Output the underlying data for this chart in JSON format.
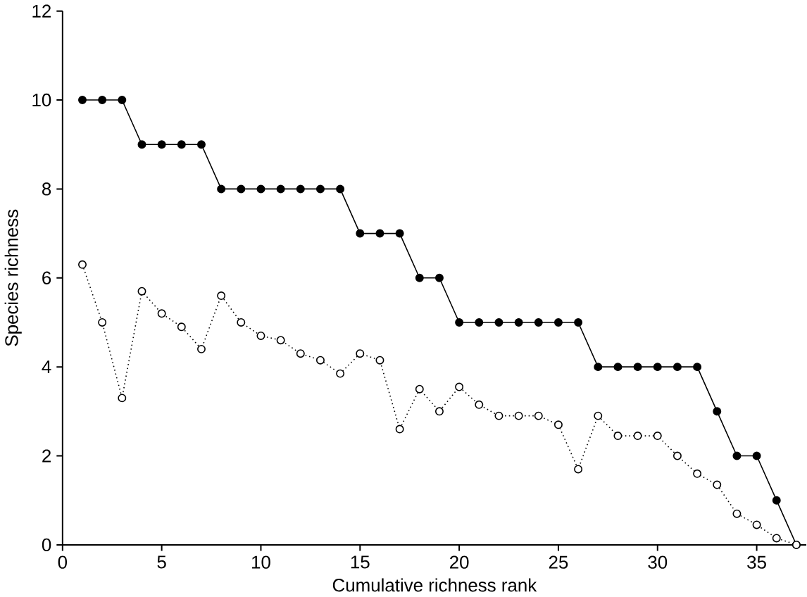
{
  "chart_data": {
    "type": "line",
    "xlabel": "Cumulative richness rank",
    "ylabel": "Species richness",
    "x": [
      1,
      2,
      3,
      4,
      5,
      6,
      7,
      8,
      9,
      10,
      11,
      12,
      13,
      14,
      15,
      16,
      17,
      18,
      19,
      20,
      21,
      22,
      23,
      24,
      25,
      26,
      27,
      28,
      29,
      30,
      31,
      32,
      33,
      34,
      35,
      36,
      37
    ],
    "series": [
      {
        "color": "#000000",
        "line_style": "solid",
        "values": [
          10,
          10,
          10,
          9,
          9,
          9,
          9,
          8,
          8,
          8,
          8,
          8,
          8,
          8,
          7,
          7,
          7,
          6,
          6,
          5,
          5,
          5,
          5,
          5,
          5,
          5,
          4,
          4,
          4,
          4,
          4,
          4,
          3,
          2,
          2,
          1,
          0
        ]
      },
      {
        "color": "#ffffff",
        "line_style": "dotted",
        "values": [
          6.3,
          5.0,
          3.3,
          5.7,
          5.2,
          4.9,
          4.4,
          5.6,
          5.0,
          4.7,
          4.6,
          4.3,
          4.15,
          3.85,
          4.3,
          4.15,
          2.6,
          3.5,
          3.0,
          3.55,
          3.15,
          2.9,
          2.9,
          2.9,
          2.7,
          1.7,
          2.9,
          2.45,
          2.45,
          2.45,
          2.0,
          1.6,
          1.35,
          0.7,
          0.45,
          0.15,
          0.0
        ]
      }
    ],
    "marker": "circle",
    "xlim": [
      0,
      37.5
    ],
    "ylim": [
      0,
      12
    ],
    "xticks": [
      0,
      5,
      10,
      15,
      20,
      25,
      30,
      35
    ],
    "yticks": [
      0,
      2,
      4,
      6,
      8,
      10,
      12
    ]
  }
}
